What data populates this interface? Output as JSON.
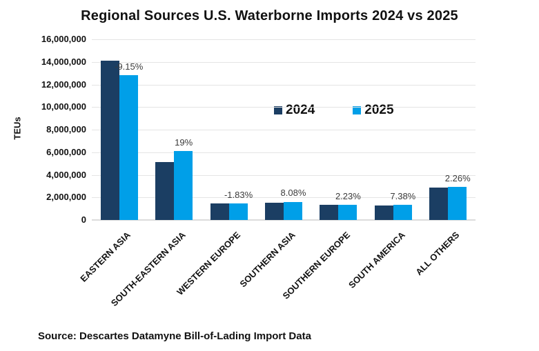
{
  "title": "Regional Sources U.S. Waterborne Imports 2024 vs 2025",
  "source_note": "Source: Descartes Datamyne Bill-of-Lading Import Data",
  "colors": {
    "series_2024": "#1B3E63",
    "series_2025": "#009FE8",
    "gridline": "#E4E4E4"
  },
  "chart_data": {
    "type": "bar",
    "title": "Regional Sources U.S. Waterborne Imports 2024 vs 2025",
    "xlabel": "",
    "ylabel": "TEUs",
    "ylim": [
      0,
      16000000
    ],
    "ytick_step": 2000000,
    "grid": "horizontal",
    "legend_position": "inside-top-center",
    "categories": [
      "EASTERN ASIA",
      "SOUTH-EASTERN ASIA",
      "WESTERN EUROPE",
      "SOUTHERN ASIA",
      "SOUTHERN EUROPE",
      "SOUTH AMERICA",
      "ALL OTHERS"
    ],
    "series": [
      {
        "name": "2024",
        "color": "#1B3E63",
        "values": [
          14100000,
          5150000,
          1480000,
          1500000,
          1340000,
          1270000,
          2890000
        ]
      },
      {
        "name": "2025",
        "color": "#009FE8",
        "values": [
          12810000,
          6130000,
          1450000,
          1620000,
          1370000,
          1360000,
          2955000
        ]
      }
    ],
    "pct_change_labels": [
      "-9.15%",
      "19%",
      "-1.83%",
      "8.08%",
      "2.23%",
      "7.38%",
      "2.26%"
    ]
  }
}
